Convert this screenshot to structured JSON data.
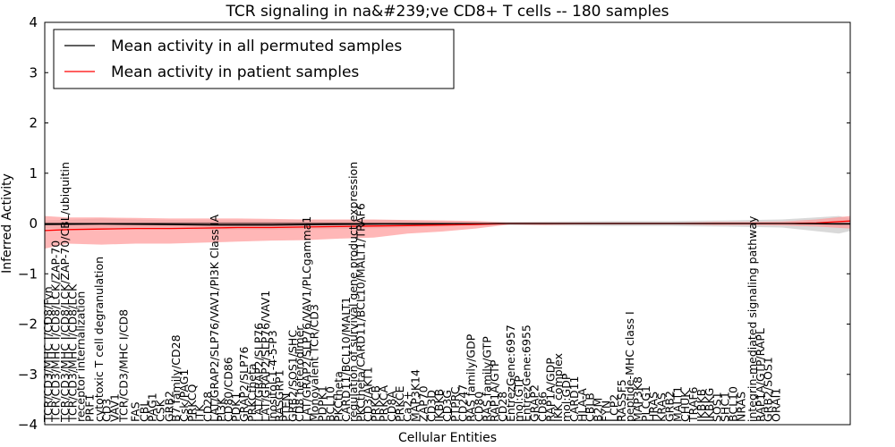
{
  "chart_data": {
    "type": "line",
    "title": "TCR signaling in na&#239;ve CD8+ T cells -- 180 samples",
    "xlabel": "Cellular Entities",
    "ylabel": "Inferred Activity",
    "ylim": [
      -4,
      4
    ],
    "yticks": [
      4,
      3,
      2,
      1,
      0,
      -1,
      -2,
      -3,
      -4
    ],
    "grid": false,
    "legend_position": "top-left",
    "legend": [
      {
        "name": "Mean activity in all permuted samples",
        "color": "#000000"
      },
      {
        "name": "Mean activity in patient samples",
        "color": "#ff0000"
      }
    ],
    "x_index_range": [
      0,
      71
    ],
    "entity_labels": [
      {
        "i": 0.3,
        "text": "TCR/CD3/MHC I/CD8/Fyn"
      },
      {
        "i": 1.0,
        "text": "TCR/CD3/MHC I/CD8/LCK/ZAP-70"
      },
      {
        "i": 1.8,
        "text": "TCR/CD3/MHC I/CD8/LCK/ZAP-70/CBL/ubiquitin"
      },
      {
        "i": 2.5,
        "text": "TCR/CD3/MHC I/CD8/LCK"
      },
      {
        "i": 3.2,
        "text": "receptor internalization"
      },
      {
        "i": 4.0,
        "text": "PRF1"
      },
      {
        "i": 4.8,
        "text": "cytotoxic T cell degranulation"
      },
      {
        "i": 5.5,
        "text": "CD3"
      },
      {
        "i": 6.2,
        "text": "VAV1"
      },
      {
        "i": 7.0,
        "text": "TCR/CD3/MHC I/CD8"
      },
      {
        "i": 8.0,
        "text": "FAS"
      },
      {
        "i": 8.8,
        "text": "CBL"
      },
      {
        "i": 9.5,
        "text": "PAG1"
      },
      {
        "i": 10.2,
        "text": "CSK"
      },
      {
        "i": 11.0,
        "text": "GRB2"
      },
      {
        "i": 11.6,
        "text": "B7 family/CD28"
      },
      {
        "i": 12.3,
        "text": "Csk/PAG1"
      },
      {
        "i": 13.0,
        "text": "PRKCQ"
      },
      {
        "i": 13.7,
        "text": "ITK"
      },
      {
        "i": 14.4,
        "text": "CD28"
      },
      {
        "i": 15.0,
        "text": "LAT/GRAP2/SLP76/VAV1/PI3K Class IA"
      },
      {
        "i": 15.6,
        "text": "PI3K"
      },
      {
        "i": 16.2,
        "text": "CD80/CD86"
      },
      {
        "i": 16.9,
        "text": "PDK1"
      },
      {
        "i": 17.6,
        "text": "GRAP2/SLP76"
      },
      {
        "i": 18.3,
        "text": "PRKCtheta"
      },
      {
        "i": 18.9,
        "text": "LAT/GRAP2/SLP76"
      },
      {
        "i": 19.5,
        "text": "LAT/GRAP2/SLP76/VAV1"
      },
      {
        "i": 20.1,
        "text": "Inositol-1-4-5-P3"
      },
      {
        "i": 20.7,
        "text": "RASGRP1"
      },
      {
        "i": 21.3,
        "text": "PTEN"
      },
      {
        "i": 21.9,
        "text": "GRB2/SOS1/SHC"
      },
      {
        "i": 22.5,
        "text": "CD8 heterodimer"
      },
      {
        "i": 23.1,
        "text": "LAT/GRAP2/SLP76/VAV1/PLCgamma1"
      },
      {
        "i": 23.8,
        "text": "Monovalent TCR/CD3"
      },
      {
        "i": 24.5,
        "text": "PDPK1"
      },
      {
        "i": 25.2,
        "text": "BCL10"
      },
      {
        "i": 25.9,
        "text": "PKCtheta"
      },
      {
        "i": 26.6,
        "text": "CARD11/BCL10/MALT1"
      },
      {
        "i": 27.2,
        "text": "regulation of survival gene product expression"
      },
      {
        "i": 27.9,
        "text": "PKCtheta/CARD11/BCL10/MALT1/TRAF6"
      },
      {
        "i": 28.5,
        "text": "CD3/AKT1"
      },
      {
        "i": 29.2,
        "text": "PRKCB"
      },
      {
        "i": 29.9,
        "text": "PRKCA"
      },
      {
        "i": 30.6,
        "text": "CD8A"
      },
      {
        "i": 31.3,
        "text": "PRKCE"
      },
      {
        "i": 32.0,
        "text": "Ca2+"
      },
      {
        "i": 32.7,
        "text": "MAP3K14"
      },
      {
        "i": 33.4,
        "text": "ZAP70"
      },
      {
        "i": 34.1,
        "text": "CD3D"
      },
      {
        "i": 34.8,
        "text": "IKBKB"
      },
      {
        "i": 35.5,
        "text": "CD3G"
      },
      {
        "i": 36.2,
        "text": "PTPRC"
      },
      {
        "i": 36.9,
        "text": "CD247"
      },
      {
        "i": 37.6,
        "text": "RAS family/GDP"
      },
      {
        "i": 38.3,
        "text": "CD80"
      },
      {
        "i": 39.0,
        "text": "RAS family/GTP"
      },
      {
        "i": 39.7,
        "text": "RAP1A/GTP"
      },
      {
        "i": 40.4,
        "text": "CD28"
      },
      {
        "i": 41.1,
        "text": "EntrezGene:6957"
      },
      {
        "i": 41.8,
        "text": "mol:GTP"
      },
      {
        "i": 42.5,
        "text": "EntrezGene:6955"
      },
      {
        "i": 43.2,
        "text": "GRAP2"
      },
      {
        "i": 43.9,
        "text": "CD86"
      },
      {
        "i": 44.6,
        "text": "RAP1A/GDP"
      },
      {
        "i": 45.3,
        "text": "IKK complex"
      },
      {
        "i": 46.0,
        "text": "mol:GDP"
      },
      {
        "i": 46.7,
        "text": "CARD11"
      },
      {
        "i": 47.4,
        "text": "HLA-A"
      },
      {
        "i": 48.1,
        "text": "CBLB"
      },
      {
        "i": 48.8,
        "text": "B2M"
      },
      {
        "i": 49.5,
        "text": "FYN"
      },
      {
        "i": 50.2,
        "text": "LCP2"
      },
      {
        "i": 50.9,
        "text": "RASSF5"
      },
      {
        "i": 51.6,
        "text": "peptide-MHC class I"
      },
      {
        "i": 52.3,
        "text": "MAP3K8"
      },
      {
        "i": 53.0,
        "text": "PLCG1"
      },
      {
        "i": 53.7,
        "text": "HRAS"
      },
      {
        "i": 54.4,
        "text": "KRAS"
      },
      {
        "i": 55.1,
        "text": "GRB2"
      },
      {
        "i": 55.8,
        "text": "MALT1"
      },
      {
        "i": 56.5,
        "text": "CHUK"
      },
      {
        "i": 57.2,
        "text": "TRAF6"
      },
      {
        "i": 57.9,
        "text": "IKBKB"
      },
      {
        "i": 58.6,
        "text": "IKBKG"
      },
      {
        "i": 59.3,
        "text": "SOS1"
      },
      {
        "i": 60.0,
        "text": "SHC1"
      },
      {
        "i": 60.7,
        "text": "BCL10"
      },
      {
        "i": 61.4,
        "text": "NRAS"
      },
      {
        "i": 62.4,
        "text": "integrin-mediated signaling pathway"
      },
      {
        "i": 63.1,
        "text": "RAP1A/GTP/RAPL"
      },
      {
        "i": 63.8,
        "text": "GRB2/SOS1"
      },
      {
        "i": 64.5,
        "text": "ORAI1"
      }
    ],
    "series": [
      {
        "name": "Mean activity in all permuted samples",
        "color": "#000000",
        "x": [
          0,
          5,
          10,
          15,
          20,
          25,
          30,
          35,
          40,
          45,
          50,
          55,
          60,
          65,
          70,
          71
        ],
        "values": [
          -0.02,
          -0.01,
          -0.02,
          -0.03,
          -0.03,
          -0.02,
          -0.01,
          -0.01,
          0.0,
          0.0,
          0.0,
          0.0,
          0.0,
          0.0,
          -0.01,
          -0.01
        ],
        "band_low": [
          -0.1,
          -0.1,
          -0.11,
          -0.12,
          -0.12,
          -0.11,
          -0.09,
          -0.06,
          -0.03,
          -0.04,
          -0.05,
          -0.05,
          -0.06,
          -0.08,
          -0.2,
          -0.15
        ],
        "band_high": [
          0.06,
          0.1,
          0.07,
          0.06,
          0.06,
          0.07,
          0.07,
          0.05,
          0.03,
          0.04,
          0.05,
          0.05,
          0.06,
          0.08,
          0.15,
          0.1
        ],
        "band_color": "#cccccc"
      },
      {
        "name": "Mean activity in patient samples",
        "color": "#ff0000",
        "x": [
          0,
          2,
          5,
          8,
          11,
          14,
          17,
          20,
          23,
          26,
          29,
          32,
          35,
          38,
          41,
          44,
          47,
          50,
          53,
          56,
          59,
          62,
          65,
          68,
          71
        ],
        "values": [
          -0.14,
          -0.12,
          -0.11,
          -0.1,
          -0.1,
          -0.09,
          -0.08,
          -0.08,
          -0.07,
          -0.06,
          -0.05,
          -0.04,
          -0.03,
          -0.02,
          0.0,
          0.0,
          0.0,
          0.0,
          0.0,
          0.0,
          0.0,
          0.0,
          0.0,
          0.01,
          0.05
        ],
        "band_low": [
          -0.5,
          -0.4,
          -0.42,
          -0.4,
          -0.4,
          -0.38,
          -0.36,
          -0.34,
          -0.33,
          -0.3,
          -0.28,
          -0.2,
          -0.16,
          -0.1,
          -0.02,
          -0.03,
          -0.02,
          -0.02,
          -0.02,
          -0.02,
          -0.03,
          -0.03,
          -0.04,
          -0.06,
          -0.1
        ],
        "band_high": [
          0.15,
          0.12,
          0.12,
          0.11,
          0.1,
          0.1,
          0.1,
          0.09,
          0.08,
          0.08,
          0.08,
          0.07,
          0.06,
          0.05,
          0.02,
          0.02,
          0.02,
          0.02,
          0.02,
          0.02,
          0.03,
          0.03,
          0.04,
          0.08,
          0.15
        ],
        "band_color": "#ff9999"
      }
    ]
  }
}
